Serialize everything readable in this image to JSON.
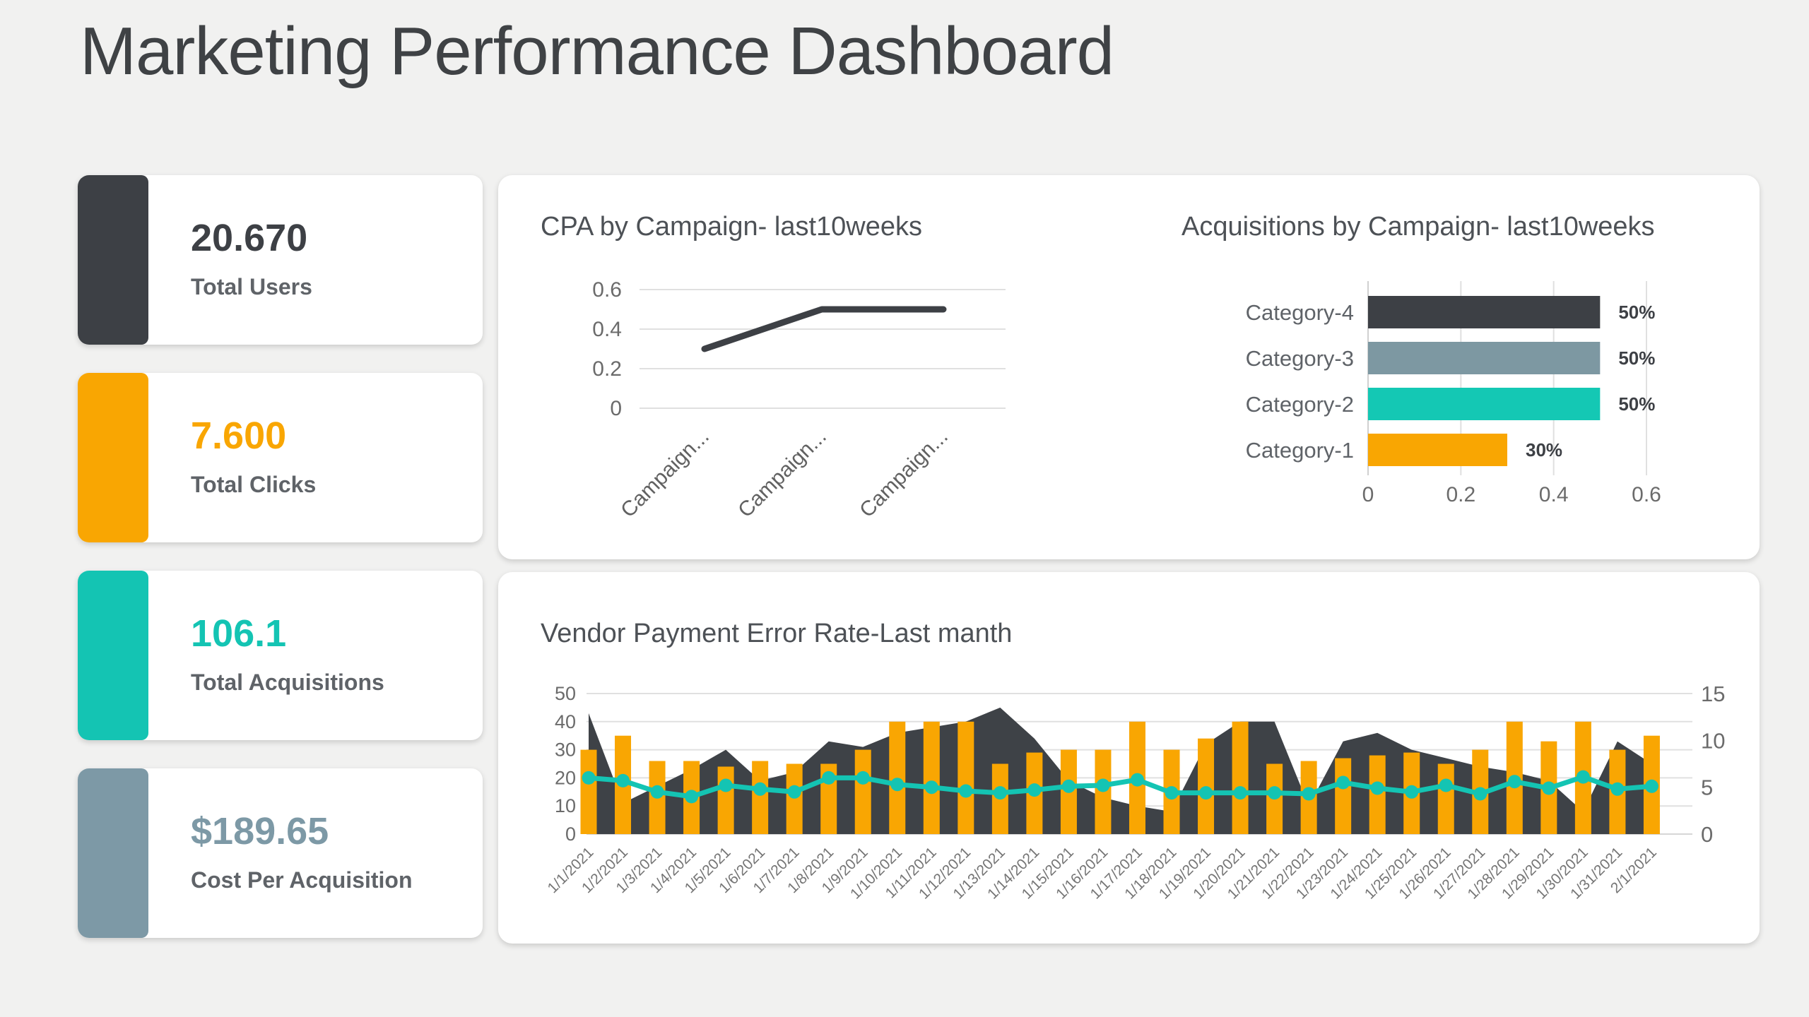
{
  "page": {
    "title": "Marketing Performance Dashboard"
  },
  "colors": {
    "background": "#f1f1f0",
    "card": "#ffffff",
    "dark": "#3d4045",
    "orange": "#f9a602",
    "teal": "#14c4b3",
    "slate": "#7d99a6",
    "grid": "#e0e0e0",
    "axis_text": "#6b6b6b",
    "tick_text": "#757575",
    "label_text": "#5f6368",
    "title_text": "#4d5156"
  },
  "kpis": [
    {
      "value": "20.670",
      "label": "Total Users",
      "color": "#3d4045"
    },
    {
      "value": "7.600",
      "label": "Total Clicks",
      "color": "#f9a602"
    },
    {
      "value": "106.1",
      "label": "Total Acquisitions",
      "color": "#14c4b3"
    },
    {
      "value": "$189.65",
      "label": "Cost Per Acquisition",
      "color": "#7d99a6"
    }
  ],
  "chart_data": [
    {
      "type": "line",
      "title": "CPA by Campaign- last10weeks",
      "categories": [
        "Campaign...",
        "Campaign...",
        "Campaign..."
      ],
      "values": [
        0.3,
        0.5,
        0.5
      ],
      "ylim": [
        0,
        0.6
      ],
      "yticks": [
        "0",
        "0.2",
        "0.4",
        "0.6"
      ],
      "grid": true,
      "legend": "none",
      "line_color": "#3d4045"
    },
    {
      "type": "bar",
      "orientation": "horizontal",
      "title": "Acquisitions by Campaign- last10weeks",
      "categories": [
        "Category-4",
        "Category-3",
        "Category-2",
        "Category-1"
      ],
      "values": [
        0.5,
        0.5,
        0.5,
        0.3
      ],
      "value_labels": [
        "50%",
        "50%",
        "50%",
        "30%"
      ],
      "bar_colors": [
        "#3d4045",
        "#7d98a2",
        "#14c8b4",
        "#f9a602"
      ],
      "xlim": [
        0,
        0.6
      ],
      "xticks": [
        "0",
        "0.2",
        "0.4",
        "0.6"
      ],
      "grid": true,
      "legend": "none"
    },
    {
      "type": "combo",
      "title": "Vendor Payment Error Rate-Last manth",
      "categories": [
        "1/1/2021",
        "1/2/2021",
        "1/3/2021",
        "1/4/2021",
        "1/5/2021",
        "1/6/2021",
        "1/7/2021",
        "1/8/2021",
        "1/9/2021",
        "1/10/2021",
        "1/11/2021",
        "1/12/2021",
        "1/13/2021",
        "1/14/2021",
        "1/15/2021",
        "1/16/2021",
        "1/17/2021",
        "1/18/2021",
        "1/19/2021",
        "1/20/2021",
        "1/21/2021",
        "1/22/2021",
        "1/23/2021",
        "1/24/2021",
        "1/25/2021",
        "1/26/2021",
        "1/27/2021",
        "1/28/2021",
        "1/29/2021",
        "1/30/2021",
        "1/31/2021",
        "2/1/2021"
      ],
      "series": [
        {
          "name": "error-count-bars",
          "type": "bar",
          "axis": "left",
          "color": "#f9a602",
          "values": [
            30,
            35,
            26,
            26,
            24,
            26,
            25,
            25,
            30,
            40,
            40,
            40,
            25,
            29,
            30,
            30,
            40,
            30,
            34,
            40,
            25,
            26,
            27,
            28,
            29,
            25,
            30,
            40,
            33,
            40,
            30,
            35
          ]
        },
        {
          "name": "payment-volume-area",
          "type": "area",
          "axis": "left",
          "color": "#3e4247",
          "values": [
            43,
            11,
            17,
            23,
            30,
            19,
            22,
            33,
            31,
            36,
            38,
            40,
            45,
            34,
            19,
            13,
            10,
            8,
            32,
            40,
            40,
            10,
            33,
            36,
            30,
            27,
            24,
            22,
            19,
            8,
            33,
            25
          ]
        },
        {
          "name": "error-rate-line",
          "type": "line",
          "axis": "right",
          "color": "#14c4b3",
          "values": [
            6.0,
            5.7,
            4.5,
            4.0,
            5.2,
            4.8,
            4.5,
            6.0,
            6.0,
            5.3,
            5.0,
            4.6,
            4.4,
            4.7,
            5.1,
            5.2,
            5.8,
            4.4,
            4.4,
            4.4,
            4.4,
            4.3,
            5.5,
            4.9,
            4.5,
            5.2,
            4.3,
            5.6,
            4.9,
            6.1,
            4.8,
            5.1
          ]
        }
      ],
      "left_axis": {
        "ticks": [
          "0",
          "10",
          "20",
          "30",
          "40",
          "50"
        ],
        "max": 50
      },
      "right_axis": {
        "ticks": [
          "0",
          "5",
          "10",
          "15"
        ],
        "max": 15
      },
      "grid": true,
      "legend": "none"
    }
  ]
}
